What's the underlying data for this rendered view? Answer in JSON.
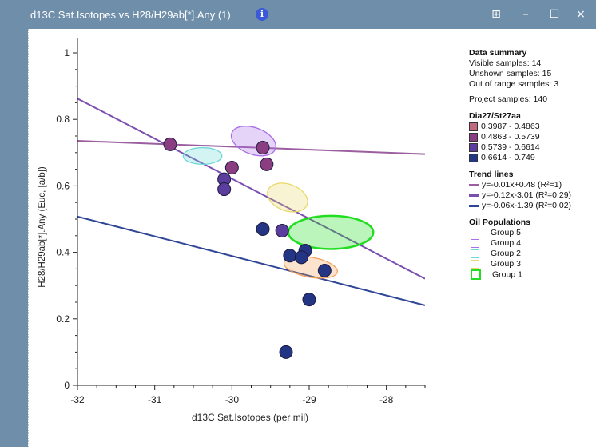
{
  "window": {
    "title": "d13C Sat.Isotopes vs H28/H29ab[*].Any (1)",
    "info_icon": "i",
    "grid_icon": "⊞",
    "min_icon": "–",
    "max_icon": "☐",
    "close_icon": "×"
  },
  "colors": {
    "bin1": "#c06a80",
    "bin2": "#8a3d80",
    "bin3": "#5b3d9e",
    "bin4": "#243584",
    "trend1": "#9b5fa0",
    "trend2": "#7a4fb0",
    "trend3": "#2f4595"
  },
  "legend": {
    "summary_title": "Data summary",
    "visible": "Visible samples: 14",
    "unshown": "Unshown samples: 15",
    "out_of_range": "Out of range samples: 3",
    "project": "Project samples: 140",
    "bins_title": "Dia27/St27aa",
    "bins": [
      "0.3987 - 0.4863",
      "0.4863 - 0.5739",
      "0.5739 - 0.6614",
      "0.6614 - 0.749"
    ],
    "trend_title": "Trend lines",
    "trends": [
      "y=-0.01x+0.48 (R²=1)",
      "y=-0.12x-3.01 (R²=0.29)",
      "y=-0.06x-1.39 (R²=0.02)"
    ],
    "pop_title": "Oil Populations",
    "pops": [
      {
        "label": "Group 5",
        "color": "#f5a25a"
      },
      {
        "label": "Group 4",
        "color": "#a96ee8"
      },
      {
        "label": "Group 2",
        "color": "#6fd8d8"
      },
      {
        "label": "Group 3",
        "color": "#e8d86a"
      },
      {
        "label": "Group 1",
        "color": "#22dd22"
      }
    ]
  },
  "chart_data": {
    "type": "scatter",
    "xlabel": "d13C Sat.Isotopes (per mil)",
    "ylabel": "H28/H29ab[*].Any (Euc, [a/b])",
    "xlim": [
      -32,
      -27.5
    ],
    "ylim": [
      0,
      1.05
    ],
    "xticks": [
      -32,
      -31,
      -30,
      -29,
      -28
    ],
    "yticks": [
      0,
      0.2,
      0.4,
      0.6,
      0.8,
      1
    ],
    "xtick_labels": [
      "-32",
      "-31",
      "-30",
      "-29",
      "-28"
    ],
    "ytick_labels": [
      "0",
      "0.2",
      "0.4",
      "0.6",
      "0.8",
      "1"
    ],
    "points": [
      {
        "x": -30.8,
        "y": 0.725,
        "bin": 1
      },
      {
        "x": -29.6,
        "y": 0.715,
        "bin": 1
      },
      {
        "x": -29.55,
        "y": 0.665,
        "bin": 1
      },
      {
        "x": -30.0,
        "y": 0.655,
        "bin": 1
      },
      {
        "x": -30.1,
        "y": 0.62,
        "bin": 2
      },
      {
        "x": -30.1,
        "y": 0.59,
        "bin": 2
      },
      {
        "x": -29.35,
        "y": 0.465,
        "bin": 2
      },
      {
        "x": -29.6,
        "y": 0.47,
        "bin": 3
      },
      {
        "x": -29.05,
        "y": 0.405,
        "bin": 3
      },
      {
        "x": -29.25,
        "y": 0.39,
        "bin": 3
      },
      {
        "x": -29.1,
        "y": 0.385,
        "bin": 3
      },
      {
        "x": -28.8,
        "y": 0.345,
        "bin": 3
      },
      {
        "x": -29.0,
        "y": 0.258,
        "bin": 3
      },
      {
        "x": -29.3,
        "y": 0.1,
        "bin": 3
      }
    ],
    "trend_lines": [
      {
        "slope": -0.01,
        "intercept": 0.48,
        "color_key": "trend1"
      },
      {
        "slope": -0.12,
        "intercept": -3.01,
        "color_key": "trend2"
      },
      {
        "slope": -0.06,
        "intercept": -1.39,
        "color_key": "trend3"
      }
    ],
    "ellipses": [
      {
        "group": "Group 4",
        "cx": -29.72,
        "cy": 0.735,
        "rx": 0.3,
        "ry": 0.04,
        "angle": 20,
        "color": "#a96ee8"
      },
      {
        "group": "Group 2",
        "cx": -30.38,
        "cy": 0.69,
        "rx": 0.25,
        "ry": 0.025,
        "angle": 0,
        "color": "#6fd8d8"
      },
      {
        "group": "Group 3",
        "cx": -29.28,
        "cy": 0.565,
        "rx": 0.27,
        "ry": 0.04,
        "angle": 20,
        "color": "#e8d86a"
      },
      {
        "group": "Group 1",
        "cx": -28.72,
        "cy": 0.46,
        "rx": 0.55,
        "ry": 0.05,
        "angle": 0,
        "color": "#22dd22"
      },
      {
        "group": "Group 5",
        "cx": -28.98,
        "cy": 0.355,
        "rx": 0.35,
        "ry": 0.03,
        "angle": 10,
        "color": "#f5a25a"
      }
    ]
  }
}
